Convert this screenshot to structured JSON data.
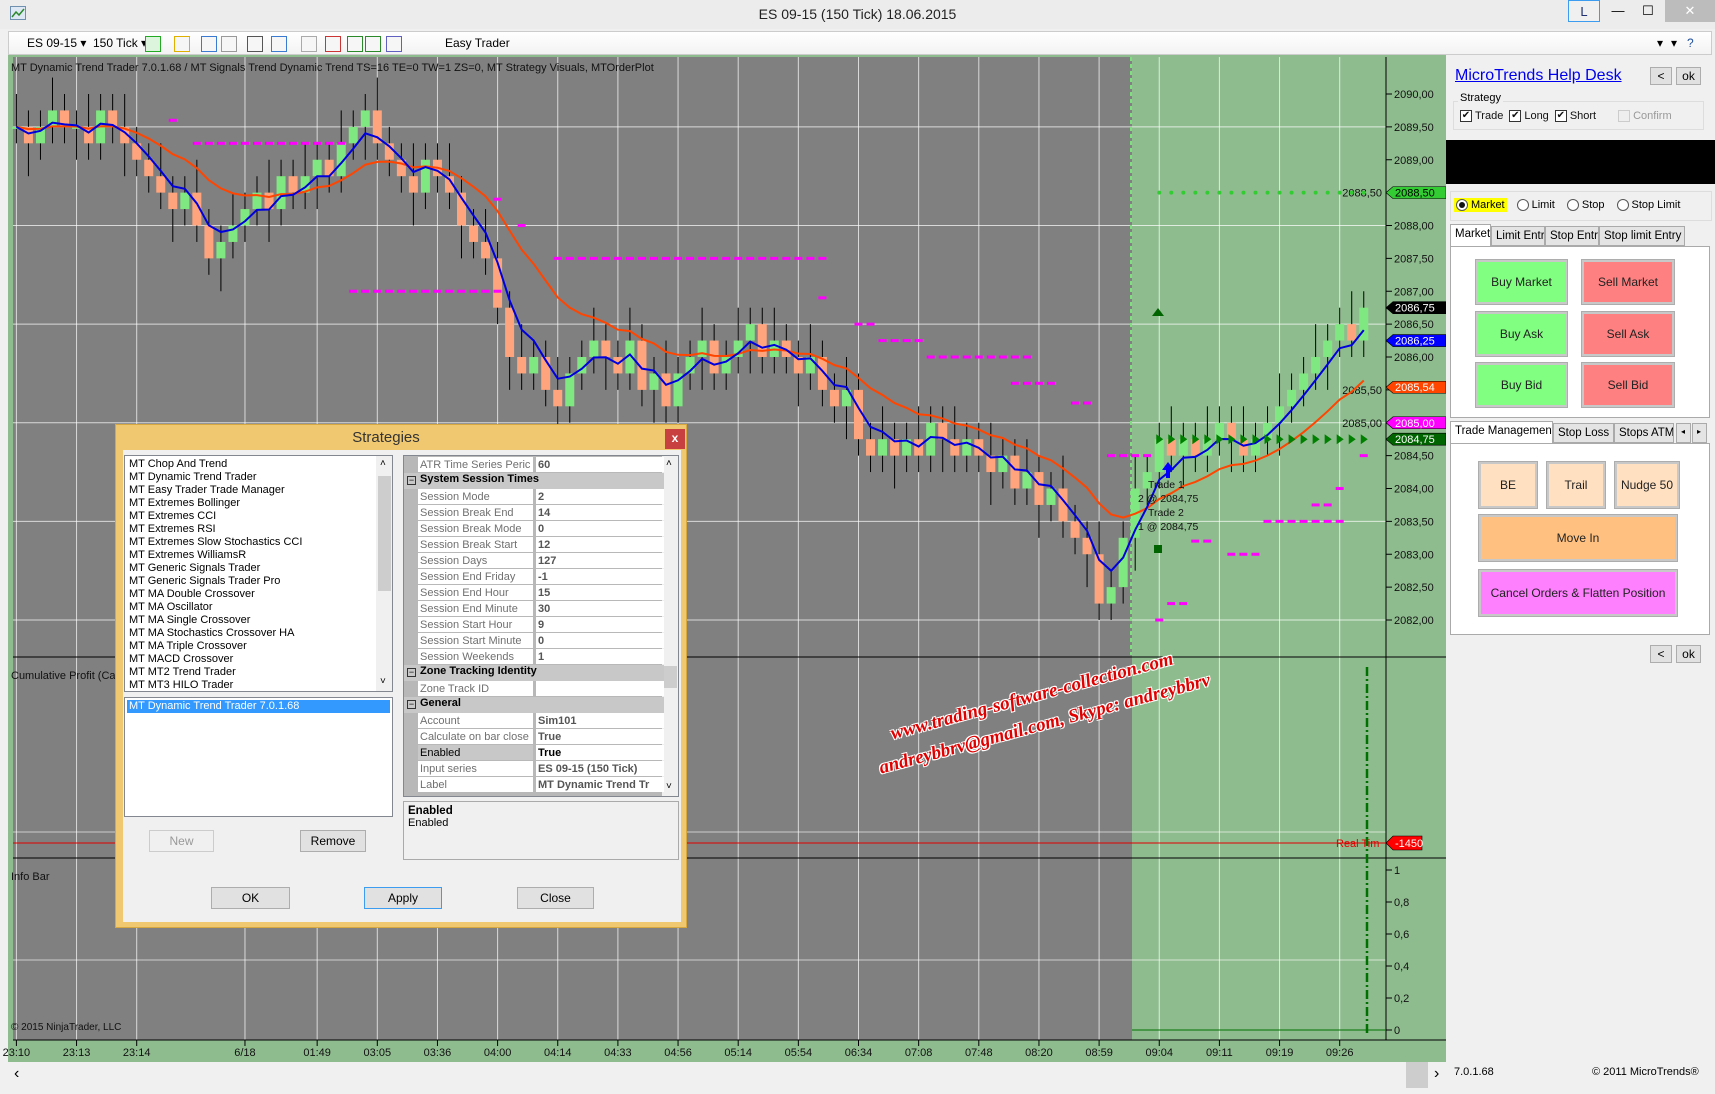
{
  "window": {
    "title": "ES 09-15 (150 Tick)  18.06.2015",
    "layout_button": "L",
    "minimize": "—",
    "maximize": "☐",
    "close": "✕"
  },
  "toolbar": {
    "instrument": "ES 09-15",
    "interval": "150 Tick",
    "easy_trader": "Easy Trader",
    "help": "?",
    "icons": [
      "candlestick-icon",
      "pencil-icon",
      "zoom-in-icon",
      "zoom-out-icon",
      "pointer-icon",
      "magnifier-icon",
      "properties-icon",
      "indicators-icon",
      "strategies-icon",
      "dollar-icon",
      "data-box-icon"
    ]
  },
  "chart": {
    "header": "MT Dynamic Trend Trader 7.0.1.68 / MT Signals Trend Dynamic Trend TS=16 TE=0 TW=1 ZS=0, MT Strategy Visuals, MTOrderPlot",
    "price_ticks": [
      "2090,00",
      "2089,50",
      "2089,00",
      "2088,50",
      "2088,00",
      "2087,50",
      "2087,00",
      "2086,50",
      "2086,00",
      "2085,50",
      "2085,00",
      "2084,50",
      "2084,00",
      "2083,50",
      "2083,00",
      "2082,50",
      "2082,00"
    ],
    "price_markers": [
      {
        "label": "2088,50",
        "price": 2088.5,
        "color": "#33cc33",
        "text_color": "#000"
      },
      {
        "label": "2086,75",
        "price": 2086.75,
        "color": "#000000",
        "text_color": "#fff"
      },
      {
        "label": "2086,25",
        "price": 2086.25,
        "color": "#0000ff",
        "text_color": "#fff"
      },
      {
        "label": "2085,54",
        "price": 2085.54,
        "color": "#ff4500",
        "text_color": "#fff"
      },
      {
        "label": "2085,00",
        "price": 2085.0,
        "color": "#ff00ff",
        "text_color": "#fff"
      },
      {
        "label": "2084,75",
        "price": 2084.75,
        "color": "#006400",
        "text_color": "#fff"
      }
    ],
    "time_labels": [
      "23:10",
      "23:13",
      "23:14",
      "6/18",
      "01:49",
      "03:05",
      "03:36",
      "04:00",
      "04:14",
      "04:33",
      "04:56",
      "05:14",
      "05:54",
      "06:34",
      "07:08",
      "07:48",
      "08:20",
      "08:59",
      "09:04",
      "09:11",
      "09:19",
      "09:26"
    ],
    "closes": [
      2089.5,
      2089.25,
      2089.5,
      2089.75,
      2089.5,
      2089.5,
      2089.25,
      2089.75,
      2089.5,
      2089.25,
      2089.0,
      2088.75,
      2088.5,
      2088.25,
      2088.5,
      2088.0,
      2087.5,
      2087.75,
      2088.0,
      2088.25,
      2088.5,
      2088.25,
      2088.75,
      2088.5,
      2088.75,
      2089.0,
      2088.75,
      2089.25,
      2089.5,
      2089.75,
      2089.25,
      2089.0,
      2088.75,
      2088.5,
      2089.0,
      2088.75,
      2088.5,
      2088.0,
      2087.75,
      2087.5,
      2086.75,
      2086.0,
      2085.75,
      2086.0,
      2085.5,
      2085.25,
      2085.75,
      2086.0,
      2086.25,
      2086.0,
      2085.75,
      2086.25,
      2085.5,
      2085.75,
      2085.25,
      2085.75,
      2086.0,
      2086.25,
      2085.75,
      2086.0,
      2086.25,
      2086.5,
      2086.0,
      2086.25,
      2086.0,
      2085.75,
      2086.0,
      2085.5,
      2085.25,
      2085.5,
      2084.75,
      2084.5,
      2084.75,
      2084.5,
      2084.75,
      2084.5,
      2085.0,
      2084.75,
      2084.5,
      2084.75,
      2084.5,
      2084.25,
      2084.5,
      2084.0,
      2084.25,
      2083.75,
      2084.0,
      2083.5,
      2083.25,
      2083.0,
      2082.25,
      2082.5,
      2083.25,
      2084.0,
      2084.25,
      2084.75,
      2084.5,
      2084.75,
      2084.5,
      2084.75,
      2085.0,
      2084.75,
      2084.5,
      2084.75,
      2085.0,
      2085.25,
      2085.5,
      2085.75,
      2086.0,
      2086.25,
      2086.5,
      2086.25,
      2086.75
    ],
    "stop_levels": [
      [
        13,
        13,
        2089.6
      ],
      [
        15,
        27,
        2089.25
      ],
      [
        28,
        40,
        2087.0
      ],
      [
        40,
        40,
        2088.4
      ],
      [
        42,
        42,
        2088.0
      ],
      [
        45,
        67,
        2087.5
      ],
      [
        67,
        67,
        2086.9
      ],
      [
        70,
        71,
        2086.5
      ],
      [
        72,
        75,
        2086.25
      ],
      [
        76,
        84,
        2086.0
      ],
      [
        83,
        86,
        2085.6
      ],
      [
        88,
        89,
        2085.3
      ],
      [
        91,
        94,
        2084.5
      ],
      [
        95,
        95,
        2082.0
      ],
      [
        96,
        97,
        2082.25
      ],
      [
        98,
        99,
        2083.2
      ],
      [
        101,
        103,
        2083.0
      ],
      [
        104,
        110,
        2083.5
      ],
      [
        108,
        109,
        2083.75
      ],
      [
        110,
        110,
        2084.0
      ],
      [
        112,
        112,
        2084.5
      ]
    ],
    "target_level": 2088.5,
    "entry_level": 2084.75,
    "trades": [
      "Trade 1",
      "2 @ 2084,75",
      "Trade 2",
      "1 @ 2084,75"
    ],
    "up_color": "#80e880",
    "down_color": "#ffa47c",
    "fast_ma_color": "#0000dd",
    "slow_ma_color": "#ff4500",
    "cum_profit_label": "Cumulative Profit (Ca",
    "realtime_label": "Real Tim",
    "realtime_value": "-1450",
    "info_bar_label": "Info Bar",
    "info_ticks": [
      "1",
      "0,8",
      "0,6",
      "0,4",
      "0,2",
      "0"
    ],
    "copyright": "© 2015 NinjaTrader, LLC",
    "watermark": [
      "www.trading-software-collection.com",
      "andreybbrv@gmail.com, Skype: andreybbrv"
    ]
  },
  "statusbar": {
    "version": "7.0.1.68",
    "copyright": "© 2011 MicroTrends®",
    "scroll_left": "‹",
    "scroll_right": "›"
  },
  "panel": {
    "help_link": "MicroTrends Help Desk",
    "back": "<",
    "ok": "ok",
    "strategy_group": "Strategy",
    "checks": [
      {
        "label": "Trade",
        "checked": true
      },
      {
        "label": "Long",
        "checked": true
      },
      {
        "label": "Short",
        "checked": true
      },
      {
        "label": "Confirm",
        "checked": false
      }
    ],
    "order_types": [
      {
        "label": "Market",
        "selected": true
      },
      {
        "label": "Limit",
        "selected": false
      },
      {
        "label": "Stop",
        "selected": false
      },
      {
        "label": "Stop Limit",
        "selected": false
      }
    ],
    "entry_tabs": [
      "Market",
      "Limit Entry",
      "Stop Entry",
      "Stop limit Entry"
    ],
    "buy_buttons": [
      "Buy Market",
      "Buy Ask",
      "Buy Bid"
    ],
    "sell_buttons": [
      "Sell Market",
      "Sell Ask",
      "Sell Bid"
    ],
    "mgmt_tabs": [
      "Trade Management",
      "Stop Loss",
      "Stops ATM"
    ],
    "mgmt_buttons": [
      "BE",
      "Trail",
      "Nudge 50"
    ],
    "move_in": "Move In",
    "cancel_flatten": "Cancel Orders & Flatten Position",
    "colors": {
      "buy": "#80ff80",
      "sell": "#ff8080",
      "mgmt": "#ffe0c0",
      "move_in": "#ffc080",
      "flatten": "#ff80ff",
      "market_highlight": "#ffff00"
    }
  },
  "dialog": {
    "title": "Strategies",
    "close": "x",
    "strategies": [
      "MT Chop And Trend",
      "MT Dynamic Trend Trader",
      "MT Easy Trader Trade Manager",
      "MT Extremes Bollinger",
      "MT Extremes CCI",
      "MT Extremes RSI",
      "MT Extremes Slow Stochastics CCI",
      "MT Extremes WilliamsR",
      "MT Generic Signals Trader",
      "MT Generic Signals Trader Pro",
      "MT MA Double Crossover",
      "MT MA Oscillator",
      "MT MA Single Crossover",
      "MT MA Stochastics Crossover HA",
      "MT MA Triple Crossover",
      "MT MACD Crossover",
      "MT MT2 Trend Trader",
      "MT MT3 HILO Trader"
    ],
    "configured": [
      "MT Dynamic Trend Trader 7.0.1.68"
    ],
    "new": "New",
    "remove": "Remove",
    "properties": [
      {
        "name": "ATR Time Series Peric",
        "value": "60"
      },
      {
        "category": "System Session Times"
      },
      {
        "name": "Session Mode",
        "value": "2"
      },
      {
        "name": "Session Break End",
        "value": "14"
      },
      {
        "name": "Session Break Mode",
        "value": "0"
      },
      {
        "name": "Session Break Start",
        "value": "12"
      },
      {
        "name": "Session Days",
        "value": "127"
      },
      {
        "name": "Session End Friday",
        "value": "-1"
      },
      {
        "name": "Session End Hour",
        "value": "15"
      },
      {
        "name": "Session End Minute",
        "value": "30"
      },
      {
        "name": "Session Start Hour",
        "value": "9"
      },
      {
        "name": "Session Start Minute",
        "value": "0"
      },
      {
        "name": "Session Weekends",
        "value": "1"
      },
      {
        "category": "Zone Tracking Identity"
      },
      {
        "name": "Zone Track ID",
        "value": ""
      },
      {
        "category": "General"
      },
      {
        "name": "Account",
        "value": "Sim101"
      },
      {
        "name": "Calculate on bar close",
        "value": "True"
      },
      {
        "name": "Enabled",
        "value": "True",
        "selected": true
      },
      {
        "name": "Input series",
        "value": "ES 09-15 (150 Tick)"
      },
      {
        "name": "Label",
        "value": "MT Dynamic Trend Tr"
      }
    ],
    "description_title": "Enabled",
    "description": "Enabled",
    "ok": "OK",
    "apply": "Apply",
    "close_button": "Close"
  }
}
